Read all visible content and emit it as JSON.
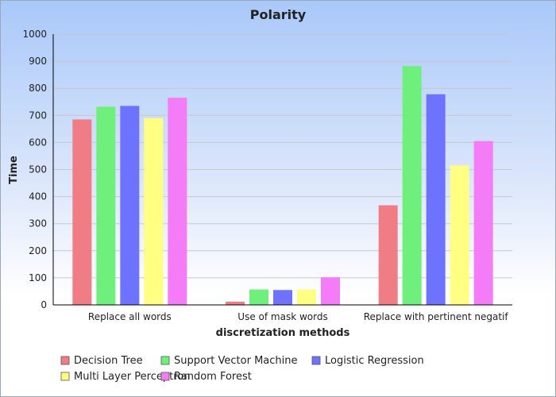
{
  "chart_data": {
    "type": "bar",
    "title": "Polarity",
    "xlabel": "discretization methods",
    "ylabel": "Time",
    "ylim": [
      0,
      1000
    ],
    "yticks": [
      0,
      100,
      200,
      300,
      400,
      500,
      600,
      700,
      800,
      900,
      1000
    ],
    "grid": true,
    "legend_position": "bottom",
    "categories": [
      "Replace all words",
      "Use of mask words",
      "Replace with pertinent negatif"
    ],
    "series": [
      {
        "name": "Decision Tree",
        "color": "#f07c86",
        "values": [
          685,
          12,
          368
        ]
      },
      {
        "name": "Support Vector Machine",
        "color": "#6ff07c",
        "values": [
          732,
          57,
          882
        ]
      },
      {
        "name": "Logistic Regression",
        "color": "#6e73ff",
        "values": [
          735,
          55,
          778
        ]
      },
      {
        "name": "Multi Layer Perceptron",
        "color": "#ffff82",
        "values": [
          690,
          57,
          515
        ]
      },
      {
        "name": "Random Forest",
        "color": "#f47cf7",
        "values": [
          765,
          102,
          605
        ]
      }
    ]
  }
}
